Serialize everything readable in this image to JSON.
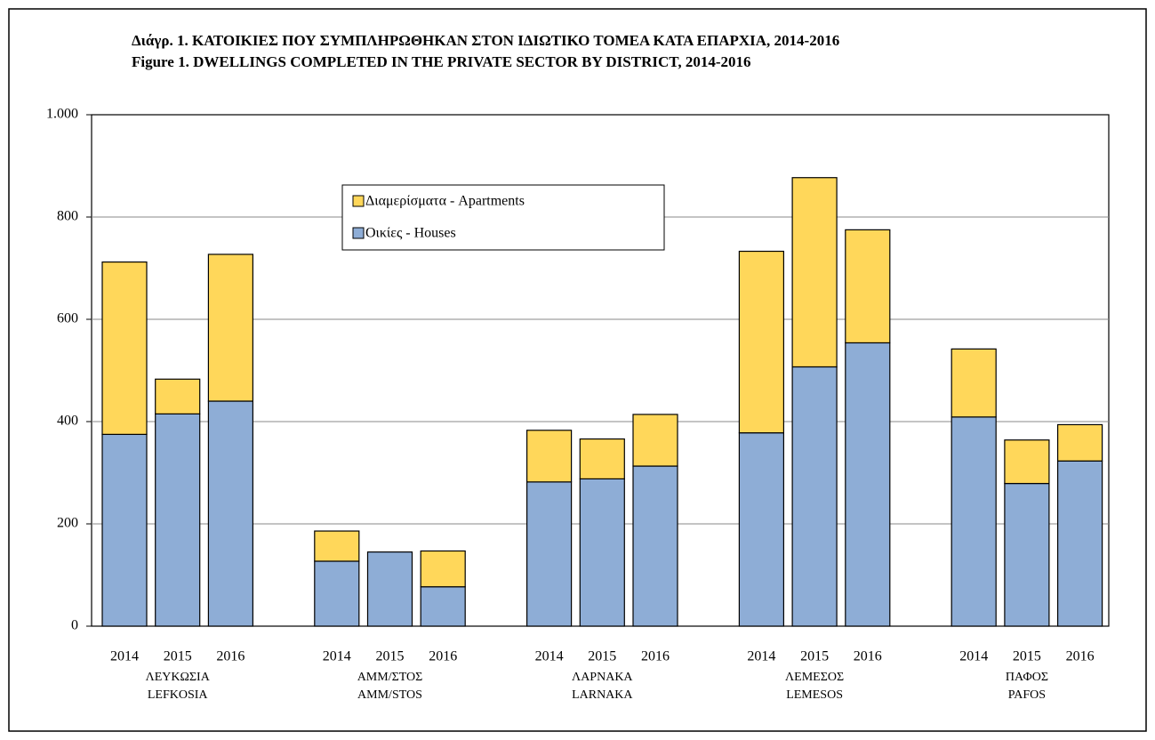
{
  "chart_data": {
    "type": "stacked_bar",
    "title": "Διάγρ.  1.  ΚΑΤΟΙΚΙΕΣ ΠΟΥ ΣΥΜΠΛΗΡΩΘΗΚΑΝ ΣΤΟΝ ΙΔΙΩΤΙΚΟ ΤΟΜΕΑ ΚΑΤΑ ΕΠΑΡΧΙΑ, 2014-2016",
    "subtitle": "Figure  1.  DWELLINGS COMPLETED IN THE PRIVATE SECTOR BY DISTRICT, 2014-2016",
    "groups": [
      [
        "ΛΕΥΚΩΣΙΑ",
        "LEFKOSIA"
      ],
      [
        "ΑΜΜ/ΣΤΟΣ",
        "AMM/STOS"
      ],
      [
        "ΛΑΡΝΑΚΑ",
        "LARNAKA"
      ],
      [
        "ΛΕΜΕΣΟΣ",
        "LEMESOS"
      ],
      [
        "ΠΑΦΟΣ",
        "PAFOS"
      ]
    ],
    "categories": [
      "2014",
      "2015",
      "2016",
      "2014",
      "2015",
      "2016",
      "2014",
      "2015",
      "2016",
      "2014",
      "2015",
      "2016",
      "2014",
      "2015",
      "2016"
    ],
    "series": [
      {
        "name": "Οικίες - Houses",
        "color": "#8eadd6",
        "values": [
          375,
          415,
          440,
          127,
          145,
          77,
          282,
          288,
          313,
          378,
          507,
          554,
          409,
          279,
          323
        ]
      },
      {
        "name": "Διαμερίσματα - Apartments",
        "color": "#ffd75a",
        "values": [
          337,
          68,
          287,
          59,
          0,
          70,
          101,
          78,
          101,
          355,
          370,
          221,
          133,
          85,
          71
        ]
      }
    ],
    "ylim": [
      0,
      1000
    ],
    "yticks": [
      0,
      200,
      400,
      600,
      800,
      {
        "value": 1000,
        "label": "1.000"
      }
    ],
    "grid": true
  }
}
